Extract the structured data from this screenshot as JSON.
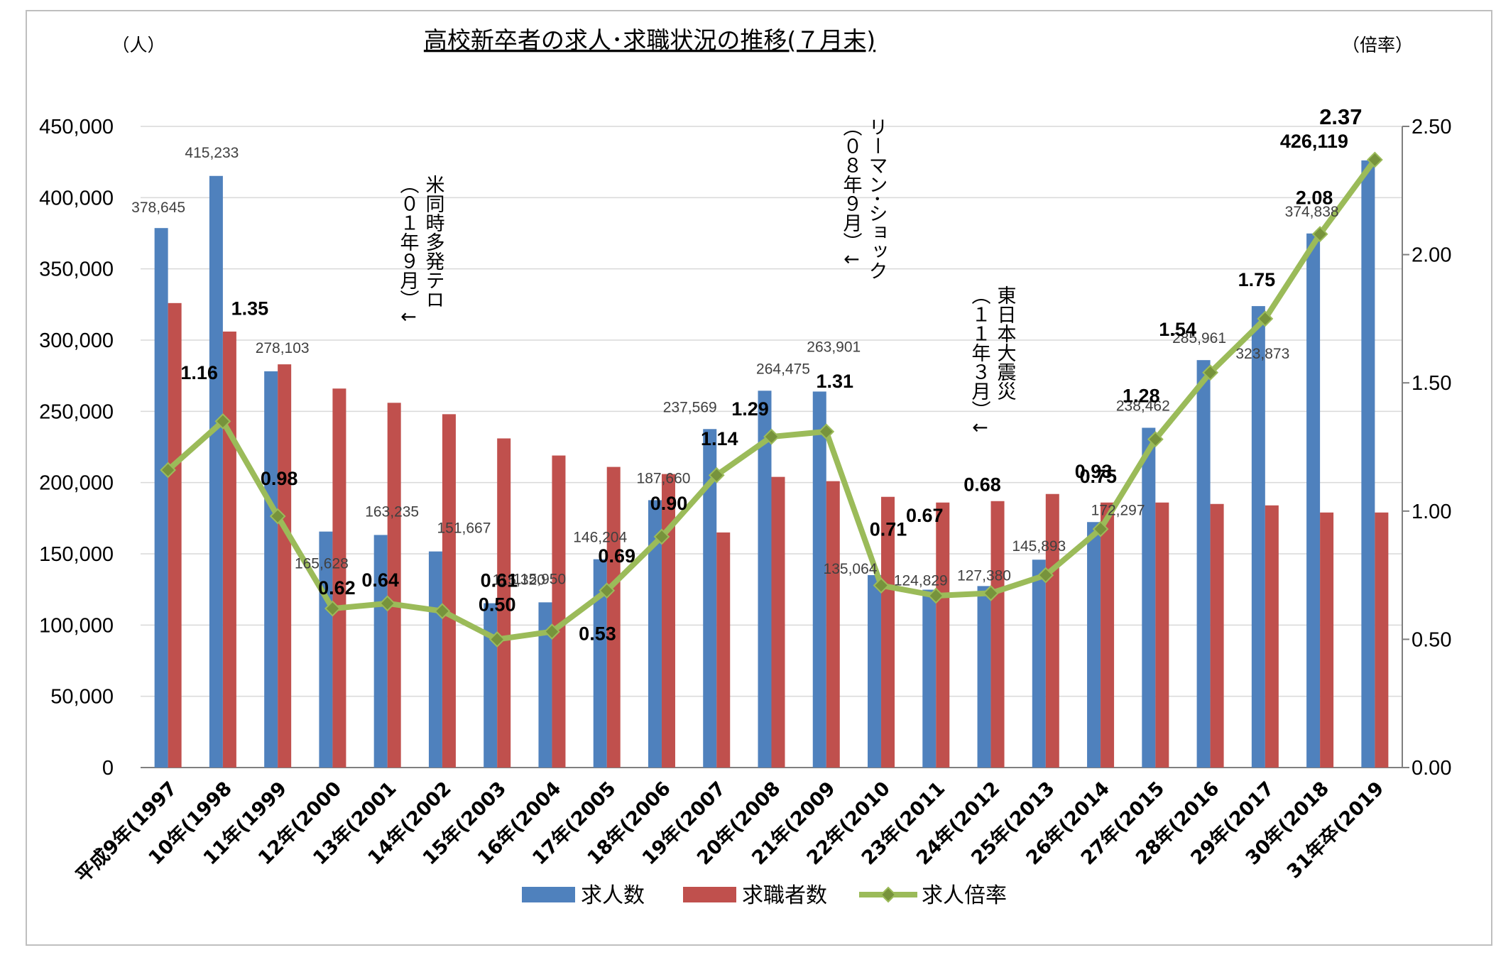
{
  "chart_data": {
    "type": "bar",
    "title": "高校新卒者の求人･求職状況の推移(７月末)",
    "y_left_unit": "（人）",
    "y_right_unit": "（倍率）",
    "ylim_left": [
      0,
      450000
    ],
    "ylim_right": [
      0,
      2.5
    ],
    "yticks_left": [
      "0",
      "50,000",
      "100,000",
      "150,000",
      "200,000",
      "250,000",
      "300,000",
      "350,000",
      "400,000",
      "450,000"
    ],
    "yticks_right": [
      "0.00",
      "0.50",
      "1.00",
      "1.50",
      "2.00",
      "2.50"
    ],
    "grid": true,
    "legend_position": "bottom",
    "categories": [
      "平成9年(1997",
      "10年(1998",
      "11年(1999",
      "12年(2000",
      "13年(2001",
      "14年(2002",
      "15年(2003",
      "16年(2004",
      "17年(2005",
      "18年(2006",
      "19年(2007",
      "20年(2008",
      "21年(2009",
      "22年(2010",
      "23年(2011",
      "24年(2012",
      "25年(2013",
      "26年(2014",
      "27年(2015",
      "28年(2016",
      "29年(2017",
      "30年(2018",
      "31年卒(2019"
    ],
    "series": [
      {
        "name": "求人数",
        "color": "#4f81bd",
        "axis": "left",
        "values": [
          378645,
          415233,
          278103,
          165628,
          163235,
          151667,
          115320,
          115950,
          146204,
          187660,
          237569,
          264475,
          263901,
          135064,
          124829,
          127380,
          145893,
          172297,
          238462,
          285961,
          323873,
          374838,
          426119
        ],
        "labels": [
          "378,645",
          "415,233",
          "278,103",
          "165,628",
          "163,235",
          "151,667",
          "115,320",
          "115,950",
          "146,204",
          "187,660",
          "237,569",
          "264,475",
          "263,901",
          "135,064",
          "124,829",
          "127,380",
          "145,893",
          "172,297",
          "238,462",
          "285,961",
          "323,873",
          "374,838",
          "426,119"
        ]
      },
      {
        "name": "求職者数",
        "color": "#c0504d",
        "axis": "left",
        "values": [
          326000,
          306000,
          283000,
          266000,
          256000,
          248000,
          231000,
          219000,
          211000,
          206000,
          165000,
          204000,
          201000,
          190000,
          186000,
          187000,
          192000,
          186000,
          186000,
          185000,
          184000,
          179000,
          179000
        ]
      },
      {
        "name": "求人倍率",
        "color": "#9bbb59",
        "axis": "right",
        "marker": "diamond",
        "values": [
          1.16,
          1.35,
          0.98,
          0.62,
          0.64,
          0.61,
          0.5,
          0.53,
          0.69,
          0.9,
          1.14,
          1.29,
          1.31,
          0.71,
          0.67,
          0.68,
          0.75,
          0.93,
          1.28,
          1.54,
          1.75,
          2.08,
          2.37
        ],
        "labels": [
          "1.16",
          "1.35",
          "0.98",
          "0.62",
          "0.64",
          "0.61",
          "0.50",
          "0.53",
          "0.69",
          "0.90",
          "1.14",
          "1.29",
          "1.31",
          "0.71",
          "0.67",
          "0.68",
          "0.75",
          "0.93",
          "1.28",
          "1.54",
          "1.75",
          "2.08",
          "2.37"
        ]
      }
    ],
    "annotations": [
      {
        "lines": [
          "米同時多発テロ",
          "（０１年９月）↓"
        ]
      },
      {
        "lines": [
          "リーマン･ショック",
          "（０８年９月）↓"
        ]
      },
      {
        "lines": [
          "東日本大震災",
          "（１１年３月）↓"
        ]
      }
    ]
  }
}
